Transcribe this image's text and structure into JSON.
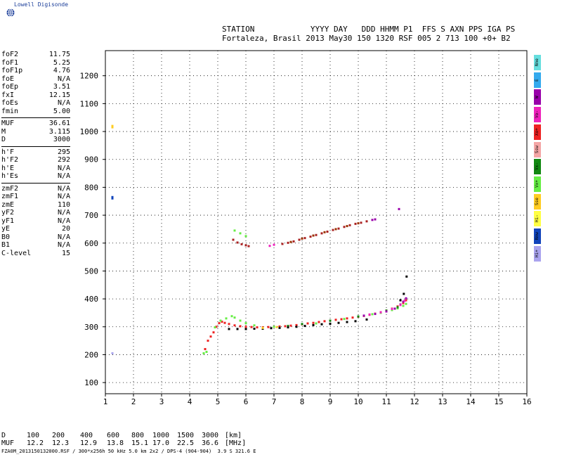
{
  "logo": {
    "name": "Lowell Digisonde",
    "icon": "globe-icon"
  },
  "header": {
    "line1": "STATION            YYYY DAY   DDD HHMM P1  FFS S AXN PPS IGA PS",
    "line2": "Fortaleza, Brasil 2013 May30 150 1320 RSF 005 2 713 100 +0+ B2"
  },
  "params": [
    [
      [
        "foF2",
        "11.75"
      ],
      [
        "foF1",
        "5.25"
      ],
      [
        "foF1p",
        "4.76"
      ],
      [
        "foE",
        "N/A"
      ],
      [
        "foEp",
        "3.51"
      ],
      [
        "fxI",
        "12.15"
      ],
      [
        "foEs",
        "N/A"
      ],
      [
        "fmin",
        "5.00"
      ]
    ],
    [
      [
        "MUF",
        "36.61"
      ],
      [
        "M",
        "3.115"
      ],
      [
        "D",
        "3000"
      ]
    ],
    [
      [
        "h'F",
        "295"
      ],
      [
        "h'F2",
        "292"
      ],
      [
        "h'E",
        "N/A"
      ],
      [
        "h'Es",
        "N/A"
      ]
    ],
    [
      [
        "zmF2",
        "N/A"
      ],
      [
        "zmF1",
        "N/A"
      ],
      [
        "zmE",
        "110"
      ],
      [
        "yF2",
        "N/A"
      ],
      [
        "yF1",
        "N/A"
      ],
      [
        "yE",
        "20"
      ],
      [
        "B0",
        "N/A"
      ],
      [
        "B1",
        "N/A"
      ],
      [
        "C-level",
        "15"
      ]
    ]
  ],
  "modes": [
    {
      "label": "Nne",
      "color": "#66dede"
    },
    {
      "label": "E",
      "color": "#33aaee"
    },
    {
      "label": "W",
      "color": "#9900aa"
    },
    {
      "label": "Vo-",
      "color": "#ee22bb"
    },
    {
      "label": "Xo+",
      "color": "#ee2222"
    },
    {
      "label": "Ssw",
      "color": "#f4a6a6"
    },
    {
      "label": "Vx-",
      "color": "#118811"
    },
    {
      "label": "Vx+",
      "color": "#66ee44"
    },
    {
      "label": "Sse",
      "color": "#ffcc22"
    },
    {
      "label": "Hi-",
      "color": "#ffff44"
    },
    {
      "label": "Nnw",
      "color": "#1144bb"
    },
    {
      "label": "Hi+",
      "color": "#aaa4ee"
    }
  ],
  "muf_table": {
    "d_label": "D",
    "d_values": [
      "100",
      "200",
      "400",
      "600",
      "800",
      "1000",
      "1500",
      "3000"
    ],
    "d_unit": "[km]",
    "muf_label": "MUF",
    "muf_values": [
      "12.2",
      "12.3",
      "12.9",
      "13.8",
      "15.1",
      "17.0",
      "22.5",
      "36.6"
    ],
    "muf_unit": "[MHz]"
  },
  "footer": "FZA0M_2013150132000.RSF / 300*x256h 50 kHz 5.0 km 2x2 / DPS-4 (904-904)  3.9 S 321.6 E",
  "chart_data": {
    "type": "scatter",
    "xlim": [
      1,
      16
    ],
    "ylim": [
      60,
      1290
    ],
    "xticks": [
      1,
      2,
      3,
      4,
      5,
      6,
      7,
      8,
      9,
      10,
      11,
      12,
      13,
      14,
      15,
      16
    ],
    "yticks": [
      100,
      200,
      300,
      400,
      500,
      600,
      700,
      800,
      900,
      1000,
      1100,
      1200
    ],
    "grid": true,
    "series": [
      {
        "color": "#ee2222",
        "points": [
          [
            4.55,
            220
          ],
          [
            4.65,
            250
          ],
          [
            4.75,
            265
          ],
          [
            4.85,
            280
          ],
          [
            4.95,
            300
          ],
          [
            5.05,
            313
          ],
          [
            5.15,
            318
          ],
          [
            5.25,
            314
          ],
          [
            5.4,
            310
          ],
          [
            5.6,
            305
          ],
          [
            5.8,
            302
          ],
          [
            6.0,
            300
          ],
          [
            6.2,
            299
          ],
          [
            6.4,
            298
          ],
          [
            6.6,
            298
          ],
          [
            6.8,
            299
          ],
          [
            7.0,
            300
          ],
          [
            7.2,
            301
          ],
          [
            7.4,
            302
          ],
          [
            7.6,
            304
          ],
          [
            7.8,
            306
          ],
          [
            8.0,
            309
          ],
          [
            8.2,
            312
          ],
          [
            8.4,
            314
          ],
          [
            8.6,
            317
          ],
          [
            8.8,
            320
          ],
          [
            9.0,
            322
          ],
          [
            9.2,
            325
          ],
          [
            9.4,
            327
          ],
          [
            9.6,
            330
          ],
          [
            9.8,
            333
          ],
          [
            10.0,
            336
          ],
          [
            10.2,
            339
          ],
          [
            10.4,
            343
          ],
          [
            10.6,
            347
          ],
          [
            10.8,
            352
          ],
          [
            11.0,
            358
          ],
          [
            11.2,
            365
          ],
          [
            11.4,
            373
          ],
          [
            11.6,
            385
          ],
          [
            11.7,
            395
          ]
        ]
      },
      {
        "color": "#66ee44",
        "points": [
          [
            4.5,
            205
          ],
          [
            4.6,
            210
          ],
          [
            4.9,
            298
          ],
          [
            5.1,
            322
          ],
          [
            5.3,
            330
          ],
          [
            5.5,
            338
          ],
          [
            5.6,
            333
          ],
          [
            5.8,
            322
          ],
          [
            6.0,
            313
          ],
          [
            6.3,
            305
          ],
          [
            7.0,
            300
          ],
          [
            8.5,
            312
          ],
          [
            9.5,
            328
          ],
          [
            10.5,
            345
          ],
          [
            10.8,
            350
          ],
          [
            11.0,
            356
          ],
          [
            11.2,
            360
          ],
          [
            11.4,
            366
          ],
          [
            11.6,
            375
          ],
          [
            11.7,
            382
          ],
          [
            5.6,
            645
          ],
          [
            5.8,
            635
          ],
          [
            6.0,
            625
          ]
        ]
      },
      {
        "color": "#118811",
        "points": [
          [
            7.5,
            303
          ],
          [
            8.0,
            310
          ],
          [
            9.0,
            322
          ],
          [
            10.0,
            337
          ],
          [
            11.0,
            358
          ],
          [
            11.4,
            370
          ]
        ]
      },
      {
        "color": "#9900aa",
        "points": [
          [
            10.2,
            340
          ],
          [
            10.6,
            346
          ],
          [
            11.0,
            355
          ],
          [
            11.3,
            365
          ],
          [
            11.5,
            380
          ],
          [
            11.6,
            390
          ],
          [
            11.7,
            402
          ],
          [
            10.5,
            683
          ],
          [
            10.6,
            685
          ],
          [
            11.45,
            722
          ]
        ]
      },
      {
        "color": "#ee22bb",
        "points": [
          [
            10.4,
            344
          ],
          [
            10.8,
            352
          ],
          [
            11.2,
            364
          ],
          [
            11.5,
            378
          ],
          [
            11.65,
            393
          ],
          [
            6.85,
            590
          ],
          [
            7.0,
            594
          ]
        ]
      },
      {
        "color": "#aa2222",
        "points": [
          [
            5.55,
            612
          ],
          [
            5.7,
            602
          ],
          [
            5.85,
            596
          ],
          [
            6.0,
            592
          ],
          [
            6.1,
            589
          ],
          [
            7.3,
            597
          ],
          [
            7.5,
            601
          ],
          [
            7.7,
            606
          ],
          [
            7.9,
            612
          ],
          [
            8.1,
            618
          ],
          [
            8.3,
            623
          ],
          [
            8.5,
            629
          ],
          [
            8.7,
            635
          ],
          [
            8.9,
            641
          ],
          [
            9.1,
            647
          ],
          [
            9.3,
            652
          ],
          [
            9.5,
            658
          ],
          [
            9.7,
            664
          ],
          [
            9.9,
            669
          ],
          [
            10.1,
            673
          ],
          [
            10.3,
            678
          ]
        ]
      },
      {
        "color": "#993300",
        "points": [
          [
            7.6,
            604
          ],
          [
            8.0,
            616
          ],
          [
            8.4,
            627
          ],
          [
            8.8,
            639
          ],
          [
            9.2,
            650
          ],
          [
            9.6,
            661
          ],
          [
            10.0,
            671
          ]
        ]
      },
      {
        "color": "#000000",
        "points": [
          [
            5.4,
            292
          ],
          [
            5.7,
            292
          ],
          [
            6.0,
            292
          ],
          [
            6.3,
            293
          ],
          [
            6.6,
            293
          ],
          [
            6.9,
            295
          ],
          [
            7.2,
            296
          ],
          [
            7.5,
            298
          ],
          [
            7.8,
            300
          ],
          [
            8.1,
            303
          ],
          [
            8.4,
            306
          ],
          [
            8.7,
            309
          ],
          [
            9.0,
            311
          ],
          [
            9.3,
            314
          ],
          [
            9.6,
            317
          ],
          [
            9.9,
            320
          ],
          [
            10.3,
            326
          ],
          [
            11.5,
            395
          ],
          [
            11.62,
            418
          ],
          [
            11.72,
            480
          ]
        ]
      },
      {
        "color": "#ffcc22",
        "points": [
          [
            1.25,
            1020
          ],
          [
            1.25,
            1015
          ],
          [
            6.6,
            296
          ],
          [
            7.1,
            299
          ]
        ]
      },
      {
        "color": "#1144bb",
        "points": [
          [
            1.25,
            760
          ],
          [
            1.25,
            765
          ]
        ]
      },
      {
        "color": "#aaa4ee",
        "points": [
          [
            1.25,
            205
          ]
        ]
      }
    ]
  }
}
